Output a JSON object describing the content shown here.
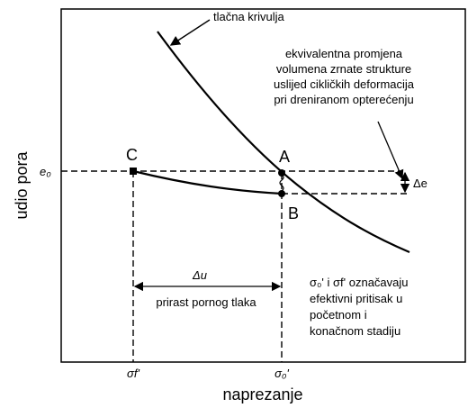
{
  "diagram": {
    "curve_label": "tlačna krivulja",
    "note_top": [
      "ekvivalentna promjena",
      "volumena zrnate strukture",
      "uslijed cikličkih deformacija",
      "pri dreniranom opterećenju"
    ],
    "y_axis_label": "udio pora",
    "x_axis_label": "naprezanje",
    "e0": "e₀",
    "points": {
      "C": "C",
      "A": "A",
      "B": "B"
    },
    "delta_e": "Δe",
    "delta_u": "Δu",
    "delta_u_caption": "prirast pornog tlaka",
    "note_bottom": [
      "σ₀' i σf' označavaju",
      "efektivni pritisak u",
      "početnom i",
      "konačnom stadiju"
    ],
    "sigma_f": "σf'",
    "sigma_0": "σ₀'"
  }
}
